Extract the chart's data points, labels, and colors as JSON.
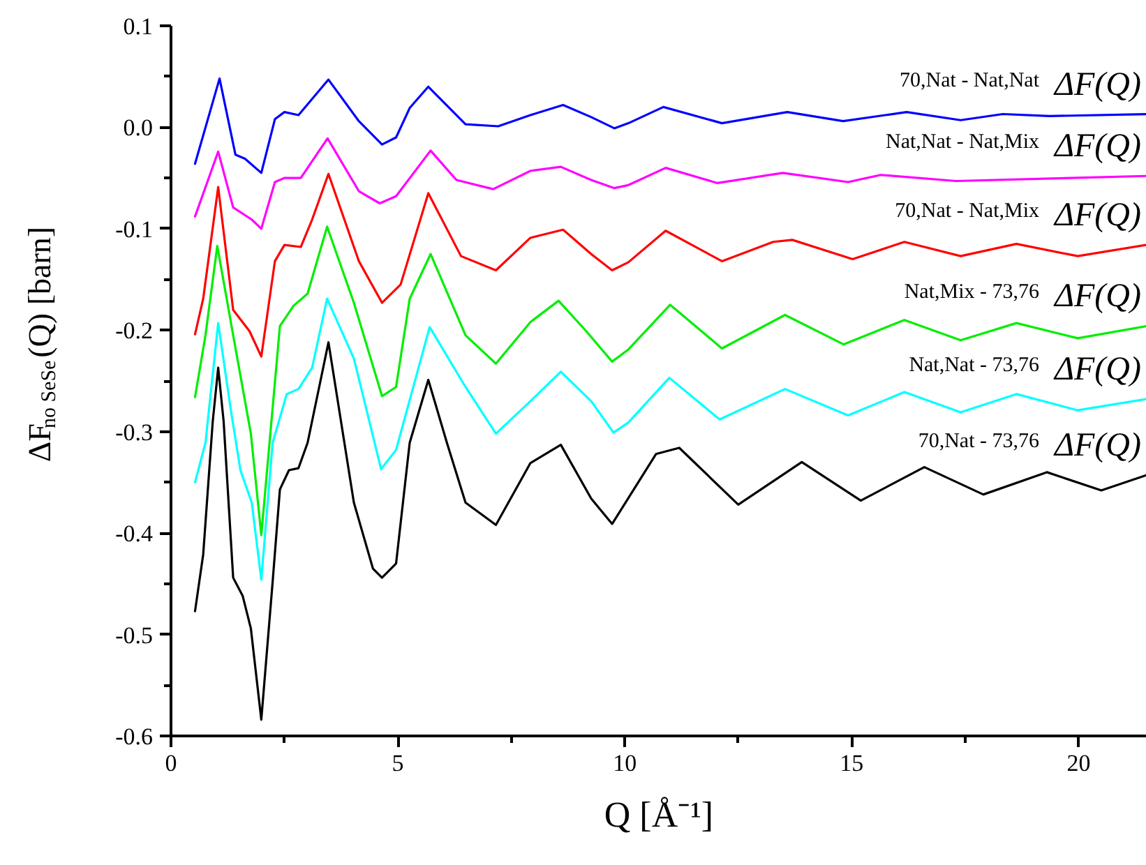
{
  "chart_data": {
    "type": "line",
    "xlabel": "Q [Å⁻¹]",
    "ylabel": "ΔF$_{no SeSe}$(Q) [barn]",
    "xlim": [
      0,
      21.5
    ],
    "ylim": [
      -0.6,
      0.1
    ],
    "xticks": [
      0,
      {
        "value": 2.5,
        "label": null
      },
      5,
      {
        "value": 7.5,
        "label": null
      },
      10,
      {
        "value": 12.5,
        "label": null
      },
      15,
      {
        "value": 17.5,
        "label": null
      },
      20
    ],
    "yticks": [
      -0.6,
      {
        "value": -0.55,
        "label": null
      },
      -0.5,
      {
        "value": -0.45,
        "label": null
      },
      -0.4,
      {
        "value": -0.35,
        "label": null
      },
      -0.3,
      {
        "value": -0.25,
        "label": null
      },
      -0.2,
      {
        "value": -0.15,
        "label": null
      },
      -0.1,
      {
        "value": -0.05,
        "label": null
      },
      {
        "value": 0,
        "label": "0.0"
      },
      {
        "value": 0.05,
        "label": null
      },
      0.1
    ],
    "grid": false,
    "marker": "none",
    "line_style": "solid",
    "series": [
      {
        "name": "70,Nat - Nat,Nat ΔF(Q)",
        "color": "#0000ff",
        "x": [
          0.53,
          1.07,
          1.42,
          1.63,
          1.99,
          2.29,
          2.5,
          2.81,
          3.47,
          4.14,
          4.65,
          4.96,
          5.26,
          5.67,
          6.49,
          7.21,
          7.92,
          8.64,
          9.26,
          9.77,
          10.08,
          10.85,
          12.14,
          13.58,
          14.81,
          16.21,
          17.4,
          18.33,
          19.36,
          21.49
        ],
        "values": [
          -0.036,
          0.048,
          -0.027,
          -0.031,
          -0.045,
          0.008,
          0.015,
          0.012,
          0.047,
          0.006,
          -0.017,
          -0.01,
          0.019,
          0.04,
          0.003,
          0.001,
          0.012,
          0.022,
          0.01,
          -0.001,
          0.004,
          0.02,
          0.004,
          0.015,
          0.006,
          0.015,
          0.007,
          0.013,
          0.011,
          0.013
        ]
      },
      {
        "name": "Nat,Nat - Nat,Mix ΔF(Q)",
        "color": "#ff00ff",
        "x": [
          0.53,
          1.04,
          1.37,
          1.78,
          1.99,
          2.29,
          2.5,
          2.86,
          3.45,
          4.14,
          4.6,
          4.96,
          5.72,
          6.29,
          7.1,
          7.92,
          8.59,
          9.26,
          9.77,
          10.08,
          10.9,
          12.04,
          13.48,
          14.92,
          15.64,
          17.3,
          21.49
        ],
        "values": [
          -0.088,
          -0.024,
          -0.079,
          -0.091,
          -0.1,
          -0.054,
          -0.05,
          -0.05,
          -0.011,
          -0.063,
          -0.075,
          -0.068,
          -0.023,
          -0.052,
          -0.061,
          -0.043,
          -0.039,
          -0.052,
          -0.06,
          -0.057,
          -0.04,
          -0.055,
          -0.045,
          -0.054,
          -0.047,
          -0.053,
          -0.048
        ]
      },
      {
        "name": "70,Nat - Nat,Mix ΔF(Q)",
        "color": "#ff0000",
        "x": [
          0.53,
          0.71,
          1.04,
          1.37,
          1.73,
          1.99,
          2.29,
          2.5,
          2.86,
          3.11,
          3.47,
          4.14,
          4.65,
          5.06,
          5.67,
          6.39,
          7.16,
          7.92,
          8.64,
          9.26,
          9.72,
          10.08,
          10.9,
          12.14,
          13.27,
          13.69,
          15.02,
          16.16,
          17.4,
          18.63,
          19.98,
          21.49
        ],
        "values": [
          -0.204,
          -0.169,
          -0.059,
          -0.18,
          -0.201,
          -0.226,
          -0.132,
          -0.116,
          -0.118,
          -0.091,
          -0.046,
          -0.132,
          -0.173,
          -0.155,
          -0.065,
          -0.127,
          -0.141,
          -0.109,
          -0.101,
          -0.125,
          -0.141,
          -0.133,
          -0.102,
          -0.132,
          -0.113,
          -0.111,
          -0.13,
          -0.113,
          -0.127,
          -0.115,
          -0.127,
          -0.116
        ]
      },
      {
        "name": "Nat,Mix - 73,76 ΔF(Q)",
        "color": "#00ee00",
        "x": [
          0.53,
          0.76,
          1.02,
          1.37,
          1.76,
          1.99,
          2.4,
          2.7,
          3.01,
          3.44,
          4.03,
          4.65,
          4.96,
          5.26,
          5.72,
          6.49,
          7.16,
          7.92,
          8.54,
          9.15,
          9.72,
          10.08,
          11.0,
          12.14,
          13.53,
          14.82,
          16.16,
          17.4,
          18.63,
          19.98,
          21.49
        ],
        "values": [
          -0.266,
          -0.205,
          -0.117,
          -0.205,
          -0.302,
          -0.402,
          -0.196,
          -0.176,
          -0.164,
          -0.098,
          -0.173,
          -0.265,
          -0.256,
          -0.169,
          -0.125,
          -0.205,
          -0.233,
          -0.192,
          -0.171,
          -0.201,
          -0.231,
          -0.219,
          -0.175,
          -0.218,
          -0.185,
          -0.214,
          -0.19,
          -0.21,
          -0.193,
          -0.208,
          -0.196
        ]
      },
      {
        "name": "Nat,Nat - 73,76 ΔF(Q)",
        "color": "#00ffff",
        "x": [
          0.53,
          0.76,
          1.04,
          1.32,
          1.53,
          1.78,
          1.99,
          2.24,
          2.55,
          2.81,
          3.11,
          3.44,
          4.03,
          4.63,
          4.96,
          5.7,
          6.49,
          7.16,
          7.92,
          8.59,
          9.26,
          9.75,
          10.08,
          10.98,
          12.09,
          13.53,
          14.92,
          16.16,
          17.4,
          18.63,
          19.98,
          21.49
        ],
        "values": [
          -0.35,
          -0.311,
          -0.193,
          -0.279,
          -0.338,
          -0.37,
          -0.446,
          -0.311,
          -0.263,
          -0.258,
          -0.237,
          -0.169,
          -0.228,
          -0.337,
          -0.318,
          -0.197,
          -0.256,
          -0.302,
          -0.27,
          -0.241,
          -0.27,
          -0.301,
          -0.291,
          -0.247,
          -0.288,
          -0.258,
          -0.284,
          -0.261,
          -0.281,
          -0.263,
          -0.279,
          -0.268
        ]
      },
      {
        "name": "70,Nat - 73,76 ΔF(Q)",
        "color": "#000000",
        "x": [
          0.53,
          0.71,
          0.92,
          1.04,
          1.16,
          1.37,
          1.58,
          1.76,
          1.99,
          2.24,
          2.4,
          2.6,
          2.81,
          3.01,
          3.47,
          4.03,
          4.45,
          4.65,
          4.96,
          5.26,
          5.67,
          6.08,
          6.49,
          7.16,
          7.92,
          8.59,
          9.26,
          9.72,
          10.69,
          11.2,
          12.5,
          13.9,
          15.2,
          16.6,
          17.9,
          19.3,
          20.5,
          21.49
        ],
        "values": [
          -0.477,
          -0.421,
          -0.29,
          -0.237,
          -0.29,
          -0.444,
          -0.462,
          -0.494,
          -0.584,
          -0.448,
          -0.357,
          -0.338,
          -0.336,
          -0.311,
          -0.212,
          -0.37,
          -0.435,
          -0.444,
          -0.43,
          -0.311,
          -0.249,
          -0.311,
          -0.37,
          -0.392,
          -0.331,
          -0.313,
          -0.366,
          -0.391,
          -0.322,
          -0.316,
          -0.372,
          -0.33,
          -0.368,
          -0.335,
          -0.362,
          -0.34,
          -0.358,
          -0.343
        ]
      }
    ]
  }
}
